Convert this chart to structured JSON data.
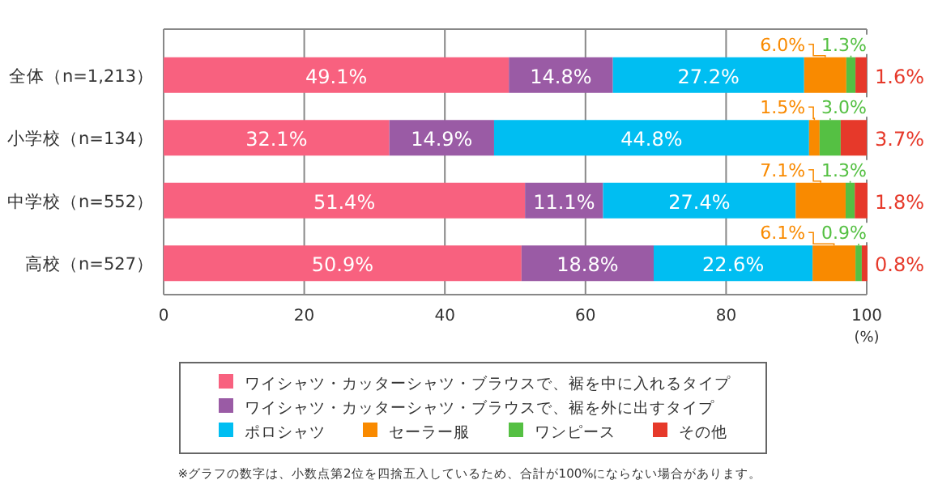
{
  "chart_data": {
    "type": "bar",
    "orientation": "horizontal",
    "stacked": true,
    "categories": [
      "全体（n=1,213）",
      "小学校（n=134）",
      "中学校（n=552）",
      "高校（n=527）"
    ],
    "series": [
      {
        "name": "ワイシャツ・カッターシャツ・ブラウスで、裾を中に入れるタイプ",
        "color": "#f8617f",
        "values": [
          49.1,
          32.1,
          51.4,
          50.9
        ],
        "value_labels": [
          "49.1%",
          "32.1%",
          "51.4%",
          "50.9%"
        ]
      },
      {
        "name": "ワイシャツ・カッターシャツ・ブラウスで、裾を外に出すタイプ",
        "color": "#9a5ba5",
        "values": [
          14.8,
          14.9,
          11.1,
          18.8
        ],
        "value_labels": [
          "14.8%",
          "14.9%",
          "11.1%",
          "18.8%"
        ]
      },
      {
        "name": "ポロシャツ",
        "color": "#00bef2",
        "values": [
          27.2,
          44.8,
          27.4,
          22.6
        ],
        "value_labels": [
          "27.2%",
          "44.8%",
          "27.4%",
          "22.6%"
        ]
      },
      {
        "name": "セーラー服",
        "color": "#f98a00",
        "values": [
          6.0,
          1.5,
          7.1,
          6.1
        ],
        "value_labels": [
          "6.0%",
          "1.5%",
          "7.1%",
          "6.1%"
        ]
      },
      {
        "name": "ワンピース",
        "color": "#55c043",
        "values": [
          1.3,
          3.0,
          1.3,
          0.9
        ],
        "value_labels": [
          "1.3%",
          "3.0%",
          "1.3%",
          "0.9%"
        ]
      },
      {
        "name": "その他",
        "color": "#e6392a",
        "values": [
          1.6,
          3.7,
          1.8,
          0.8
        ],
        "value_labels": [
          "1.6%",
          "3.7%",
          "1.8%",
          "0.8%"
        ]
      }
    ],
    "xlim": [
      0,
      100
    ],
    "xticks": [
      0,
      20,
      40,
      60,
      80,
      100
    ],
    "xlabel": "(%)",
    "grid": "x",
    "legend": "bottom",
    "annotations": [
      "※グラフの数字は、小数点第2位を四捨五入しているため、合計が100%にならない場合があります。"
    ]
  }
}
